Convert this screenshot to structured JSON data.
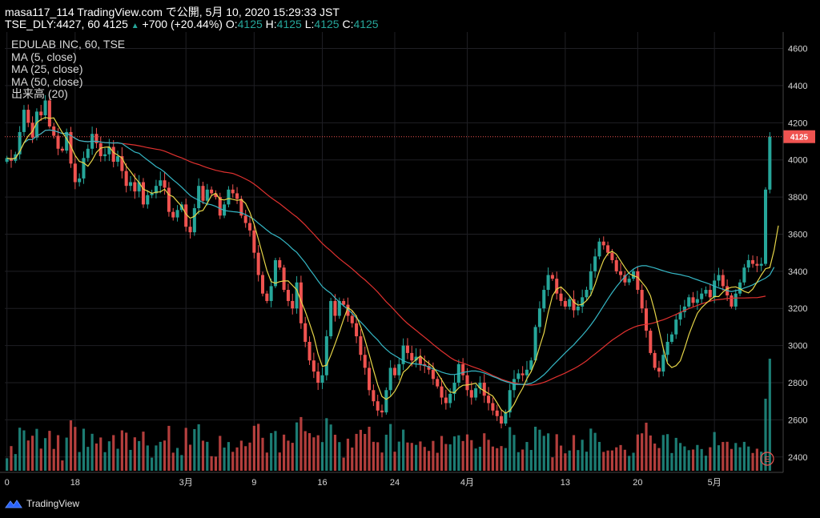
{
  "header": {
    "line1": "masa117_114 TradingView.com で公開, 5月 10, 2020 15:29:33 JST",
    "line2_prefix": "TSE_DLY:4427, 60 4125",
    "change": "+700 (+20.44%)",
    "o_label": "O:",
    "o_value": "4125",
    "h_label": "H:",
    "h_value": "4125",
    "l_label": "L:",
    "l_value": "4125",
    "c_label": "C:",
    "c_value": "4125"
  },
  "legend": {
    "symbol": "EDULAB INC, 60, TSE",
    "ma5": "MA (5, close)",
    "ma25": "MA (25, close)",
    "ma50": "MA (50, close)",
    "volume": "出来高 (20)"
  },
  "footer": {
    "brand": "TradingView"
  },
  "earnings_marker": "E",
  "colors": {
    "background": "#000000",
    "grid": "#1f1f24",
    "up": "#26a69a",
    "down": "#ef5350",
    "ma5": "#e6d548",
    "ma25": "#35b7c5",
    "ma50": "#e0312f",
    "price_line": "#ef5350"
  },
  "chart_data": {
    "type": "candlestick",
    "symbol": "TSE_DLY:4427",
    "interval": "60",
    "last_price": 4125,
    "last_price_label": "4125",
    "ylim": [
      2330,
      4680
    ],
    "y_ticks": [
      2400,
      2600,
      2800,
      3000,
      3200,
      3400,
      3600,
      3800,
      4000,
      4200,
      4400,
      4600
    ],
    "y_tick_labels": [
      "2400",
      "2600",
      "2800",
      "3000",
      "3200",
      "3400",
      "3600",
      "3800",
      "4000",
      "4200",
      "4400",
      "4600"
    ],
    "x_tick_labels": [
      "0",
      "18",
      "3月",
      "9",
      "16",
      "24",
      "4月",
      "13",
      "20",
      "5月"
    ],
    "x_tick_bar_index": [
      0,
      16,
      42,
      58,
      74,
      91,
      108,
      131,
      148,
      166
    ],
    "closes": [
      4010,
      3995,
      4030,
      4150,
      4270,
      4200,
      4120,
      4260,
      4240,
      4320,
      4180,
      4130,
      4060,
      4050,
      4150,
      3980,
      3880,
      3900,
      4010,
      4060,
      4140,
      4090,
      4020,
      4030,
      4070,
      3990,
      4020,
      3940,
      3860,
      3880,
      3830,
      3880,
      3760,
      3810,
      3820,
      3860,
      3890,
      3850,
      3720,
      3690,
      3730,
      3760,
      3640,
      3610,
      3740,
      3860,
      3780,
      3840,
      3820,
      3800,
      3700,
      3760,
      3840,
      3820,
      3790,
      3700,
      3660,
      3620,
      3500,
      3380,
      3280,
      3240,
      3320,
      3460,
      3420,
      3300,
      3240,
      3200,
      3340,
      3120,
      3020,
      2920,
      2860,
      2800,
      2840,
      3050,
      3240,
      3160,
      3240,
      3220,
      3160,
      3120,
      3050,
      2950,
      2880,
      2760,
      2700,
      2650,
      2640,
      2760,
      2880,
      2840,
      2900,
      3000,
      2960,
      2920,
      2940,
      2900,
      2890,
      2870,
      2820,
      2780,
      2720,
      2690,
      2740,
      2800,
      2900,
      2840,
      2760,
      2720,
      2770,
      2800,
      2730,
      2690,
      2650,
      2620,
      2580,
      2640,
      2760,
      2820,
      2850,
      2840,
      2870,
      2920,
      3100,
      3200,
      3300,
      3380,
      3360,
      3280,
      3240,
      3210,
      3250,
      3190,
      3210,
      3260,
      3300,
      3400,
      3480,
      3560,
      3540,
      3500,
      3460,
      3400,
      3380,
      3340,
      3360,
      3400,
      3300,
      3200,
      3080,
      2960,
      2880,
      2860,
      2950,
      3020,
      3060,
      3140,
      3180,
      3210,
      3260,
      3230,
      3250,
      3280,
      3300,
      3260,
      3350,
      3380,
      3320,
      3270,
      3210,
      3280,
      3340,
      3420,
      3460,
      3440,
      3430,
      3440,
      3840,
      4125
    ],
    "ma5": [
      4010,
      4005,
      4008,
      4044,
      4091,
      4129,
      4154,
      4200,
      4218,
      4228,
      4224,
      4226,
      4186,
      4148,
      4114,
      4074,
      4024,
      3992,
      3984,
      3966,
      3998,
      4040,
      4064,
      4068,
      4070,
      4040,
      4026,
      4010,
      3966,
      3938,
      3906,
      3878,
      3842,
      3832,
      3820,
      3826,
      3828,
      3842,
      3812,
      3802,
      3776,
      3750,
      3708,
      3686,
      3696,
      3722,
      3728,
      3766,
      3808,
      3820,
      3788,
      3784,
      3792,
      3788,
      3782,
      3786,
      3766,
      3718,
      3654,
      3572,
      3488,
      3404,
      3344,
      3336,
      3344,
      3348,
      3348,
      3324,
      3300,
      3240,
      3184,
      3120,
      3050,
      2954,
      2888,
      2894,
      2948,
      3010,
      3074,
      3142,
      3204,
      3188,
      3158,
      3102,
      3032,
      2952,
      2868,
      2788,
      2726,
      2710,
      2726,
      2754,
      2796,
      2856,
      2876,
      2904,
      2924,
      2944,
      2922,
      2904,
      2884,
      2852,
      2816,
      2776,
      2750,
      2746,
      2772,
      2786,
      2788,
      2792,
      2798,
      2770,
      2756,
      2742,
      2728,
      2692,
      2654,
      2636,
      2650,
      2684,
      2730,
      2770,
      2822,
      2860,
      2916,
      2994,
      3068,
      3178,
      3268,
      3304,
      3316,
      3294,
      3268,
      3234,
      3218,
      3222,
      3242,
      3272,
      3330,
      3400,
      3460,
      3496,
      3508,
      3492,
      3456,
      3420,
      3388,
      3376,
      3368,
      3340,
      3312,
      3268,
      3184,
      3084,
      2984,
      2904,
      2882,
      2892,
      2918,
      2984,
      3058,
      3118,
      3174,
      3204,
      3226,
      3246,
      3264,
      3264,
      3288,
      3306,
      3314,
      3316,
      3306,
      3292,
      3284,
      3304,
      3342,
      3380,
      3414,
      3420,
      3514,
      3646
    ],
    "ma25": [
      4010,
      4003,
      4012,
      4046,
      4091,
      4109,
      4110,
      4129,
      4141,
      4159,
      4161,
      4158,
      4150,
      4142,
      4143,
      4131,
      4116,
      4104,
      4100,
      4098,
      4100,
      4100,
      4096,
      4093,
      4092,
      4091,
      4092,
      4088,
      4072,
      4057,
      4042,
      4036,
      4017,
      3999,
      3982,
      3964,
      3951,
      3934,
      3913,
      3892,
      3874,
      3853,
      3830,
      3808,
      3794,
      3783,
      3770,
      3763,
      3758,
      3750,
      3738,
      3728,
      3724,
      3721,
      3719,
      3715,
      3705,
      3693,
      3679,
      3659,
      3641,
      3622,
      3604,
      3592,
      3580,
      3562,
      3543,
      3520,
      3502,
      3474,
      3446,
      3412,
      3381,
      3348,
      3318,
      3298,
      3282,
      3256,
      3234,
      3214,
      3196,
      3173,
      3149,
      3127,
      3103,
      3077,
      3052,
      3030,
      3002,
      2980,
      2960,
      2946,
      2933,
      2918,
      2909,
      2903,
      2901,
      2898,
      2893,
      2885,
      2874,
      2867,
      2857,
      2850,
      2845,
      2844,
      2848,
      2855,
      2859,
      2863,
      2863,
      2859,
      2852,
      2843,
      2833,
      2825,
      2814,
      2806,
      2799,
      2791,
      2791,
      2791,
      2792,
      2796,
      2808,
      2824,
      2843,
      2866,
      2891,
      2914,
      2937,
      2961,
      2983,
      3004,
      3030,
      3055,
      3082,
      3111,
      3143,
      3178,
      3215,
      3251,
      3285,
      3316,
      3345,
      3372,
      3392,
      3412,
      3425,
      3430,
      3430,
      3424,
      3418,
      3410,
      3403,
      3396,
      3390,
      3386,
      3382,
      3376,
      3371,
      3362,
      3354,
      3346,
      3338,
      3330,
      3320,
      3311,
      3303,
      3296,
      3291,
      3296,
      3301,
      3310,
      3318,
      3327,
      3340,
      3352,
      3363,
      3380,
      3422
    ],
    "ma50": [
      4010,
      4003,
      4012,
      4046,
      4091,
      4109,
      4110,
      4129,
      4141,
      4159,
      4161,
      4158,
      4150,
      4142,
      4143,
      4131,
      4116,
      4104,
      4100,
      4098,
      4100,
      4100,
      4096,
      4093,
      4092,
      4091,
      4092,
      4088,
      4086,
      4083,
      4080,
      4076,
      4071,
      4066,
      4062,
      4058,
      4054,
      4047,
      4038,
      4028,
      4019,
      4011,
      4001,
      3990,
      3982,
      3975,
      3966,
      3958,
      3951,
      3944,
      3939,
      3934,
      3931,
      3927,
      3918,
      3908,
      3897,
      3885,
      3870,
      3852,
      3833,
      3814,
      3796,
      3780,
      3764,
      3746,
      3728,
      3709,
      3692,
      3671,
      3649,
      3624,
      3600,
      3575,
      3550,
      3529,
      3510,
      3488,
      3468,
      3450,
      3432,
      3413,
      3393,
      3372,
      3354,
      3333,
      3311,
      3288,
      3262,
      3236,
      3213,
      3189,
      3164,
      3140,
      3119,
      3100,
      3082,
      3063,
      3045,
      3026,
      3006,
      2988,
      2970,
      2953,
      2936,
      2922,
      2913,
      2906,
      2897,
      2888,
      2880,
      2872,
      2861,
      2850,
      2839,
      2829,
      2819,
      2811,
      2804,
      2799,
      2794,
      2790,
      2788,
      2787,
      2790,
      2795,
      2802,
      2811,
      2822,
      2832,
      2842,
      2852,
      2864,
      2875,
      2888,
      2902,
      2918,
      2937,
      2955,
      2973,
      2992,
      3011,
      3029,
      3044,
      3060,
      3075,
      3087,
      3098,
      3106,
      3111,
      3114,
      3118,
      3124,
      3132,
      3139,
      3148,
      3158,
      3168,
      3179,
      3189,
      3199,
      3208,
      3216,
      3225,
      3232,
      3239,
      3245,
      3248,
      3250,
      3253,
      3255,
      3256,
      3256,
      3256,
      3257,
      3258,
      3258,
      3262,
      3266
    ]
  }
}
